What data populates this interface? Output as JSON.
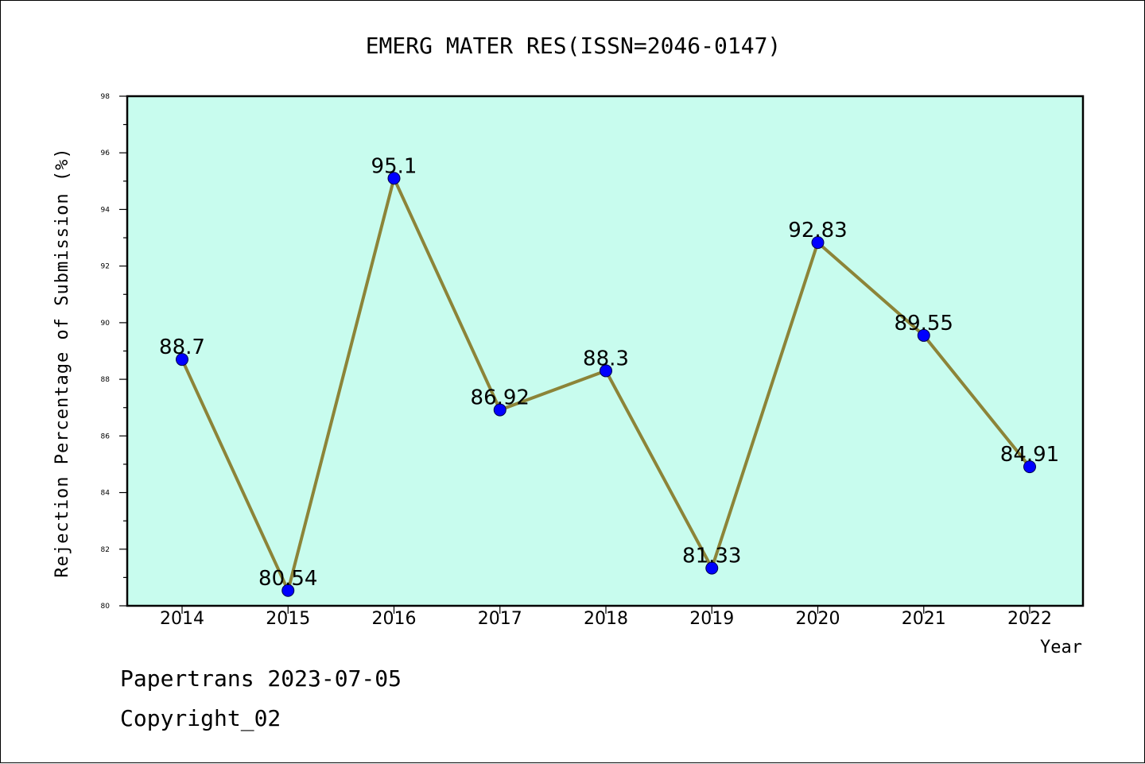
{
  "colors": {
    "plot_background": "#c8fcee",
    "line": "#8c8438",
    "marker_fill": "#0000ff",
    "marker_edge": "#00004a"
  },
  "chart_data": {
    "type": "line",
    "title": "EMERG MATER RES(ISSN=2046-0147)",
    "xlabel": "Year",
    "ylabel": "Rejection Percentage of Submission (%)",
    "categories": [
      "2014",
      "2015",
      "2016",
      "2017",
      "2018",
      "2019",
      "2020",
      "2021",
      "2022"
    ],
    "series": [
      {
        "values": [
          88.7,
          80.54,
          95.1,
          86.92,
          88.3,
          81.33,
          92.83,
          89.55,
          84.91
        ]
      }
    ],
    "data_labels": [
      "88.7",
      "80.54",
      "95.1",
      "86.92",
      "88.3",
      "81.33",
      "92.83",
      "89.55",
      "84.91"
    ],
    "ylim": [
      80,
      98
    ],
    "yticks": [
      80,
      82,
      84,
      86,
      88,
      90,
      92,
      94,
      96,
      98
    ],
    "grid": false,
    "legend": "none"
  },
  "footer": {
    "line1": "Papertrans 2023-07-05",
    "line2": "Copyright_02"
  }
}
